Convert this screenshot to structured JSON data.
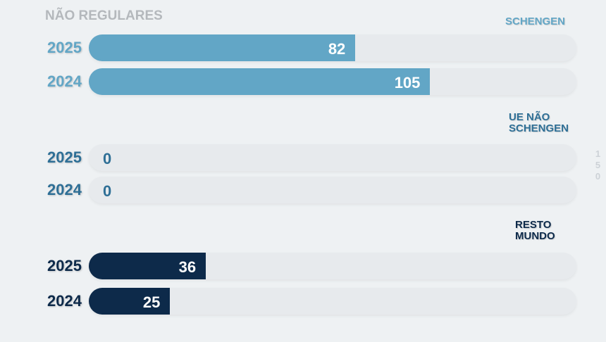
{
  "chart_data": {
    "type": "bar",
    "title": "NÃO REGULARES",
    "xlim": [
      0,
      150
    ],
    "xticks": [
      150
    ],
    "groups": [
      {
        "name": "SCHENGEN",
        "color": "#62a6c6",
        "categories": [
          "2025",
          "2024"
        ],
        "values": [
          82,
          105
        ]
      },
      {
        "name": "UE NÃO SCHENGEN",
        "color": "#2e6f96",
        "categories": [
          "2025",
          "2024"
        ],
        "values": [
          0,
          0
        ]
      },
      {
        "name": "RESTO MUNDO",
        "color": "#0d2a4a",
        "categories": [
          "2025",
          "2024"
        ],
        "values": [
          36,
          25
        ]
      }
    ]
  }
}
